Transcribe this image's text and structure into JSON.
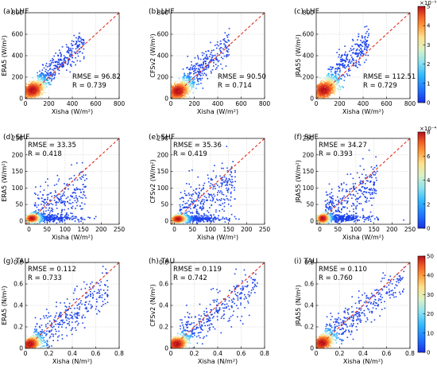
{
  "colors": {
    "identity_line": "#e0301e",
    "density_scale": [
      "#1b2fe3",
      "#1f6fff",
      "#2fb7ff",
      "#8fe3f0",
      "#d9f2c8",
      "#ffe08a",
      "#ff9a3c",
      "#f05a24",
      "#b80f1c"
    ]
  },
  "chart_data": [
    {
      "type": "scatter",
      "panel": "a",
      "title": "(a) LHF",
      "ylabel": "ERA5  (W/m²)",
      "xlabel": "Xisha  (W/m²)",
      "xlim": [
        0,
        800
      ],
      "ylim": [
        0,
        800
      ],
      "xticks": [
        0,
        200,
        400,
        600,
        800
      ],
      "yticks": [
        0,
        200,
        400,
        600,
        800
      ],
      "stats": {
        "rmse": "RMSE = 96.82",
        "r": "R = 0.739"
      },
      "stats_position": "bottom-right",
      "cluster": {
        "center": [
          60,
          80
        ],
        "spread": [
          50,
          45
        ],
        "corr": 0.55
      },
      "tail": {
        "x_range": [
          100,
          500
        ],
        "slope": 1.0,
        "offset": 30,
        "scatter": 60
      },
      "n_points": 1150
    },
    {
      "type": "scatter",
      "panel": "b",
      "title": "(b) LHF",
      "ylabel": "CFSv2  (W/m²)",
      "xlabel": "Xisha  (W/m²)",
      "xlim": [
        0,
        800
      ],
      "ylim": [
        0,
        800
      ],
      "xticks": [
        0,
        200,
        400,
        600,
        800
      ],
      "yticks": [
        0,
        200,
        400,
        600,
        800
      ],
      "stats": {
        "rmse": "RMSE = 90.50",
        "r": "R = 0.714"
      },
      "stats_position": "bottom-right",
      "cluster": {
        "center": [
          60,
          70
        ],
        "spread": [
          50,
          45
        ],
        "corr": 0.55
      },
      "tail": {
        "x_range": [
          100,
          500
        ],
        "slope": 0.95,
        "offset": 30,
        "scatter": 70
      },
      "n_points": 1150
    },
    {
      "type": "scatter",
      "panel": "c",
      "title": "(c) LHF",
      "ylabel": "JRA55  (W/m²)",
      "xlabel": "Xisha  (W/m²)",
      "xlim": [
        0,
        800
      ],
      "ylim": [
        0,
        800
      ],
      "xticks": [
        0,
        200,
        400,
        600,
        800
      ],
      "yticks": [
        0,
        200,
        400,
        600,
        800
      ],
      "stats": {
        "rmse": "RMSE = 112.51",
        "r": "R = 0.729"
      },
      "stats_position": "bottom-right",
      "cluster": {
        "center": [
          65,
          80
        ],
        "spread": [
          55,
          50
        ],
        "corr": 0.55
      },
      "tail": {
        "x_range": [
          100,
          450
        ],
        "slope": 1.1,
        "offset": 40,
        "scatter": 70
      },
      "n_points": 1150
    },
    {
      "type": "scatter",
      "panel": "d",
      "title": "(d) SHF",
      "ylabel": "ERA5  (W/m²)",
      "xlabel": "Xisha  (W/m²)",
      "xlim": [
        -10,
        250
      ],
      "ylim": [
        -10,
        250
      ],
      "xticks": [
        0,
        50,
        100,
        150,
        200,
        250
      ],
      "yticks": [
        0,
        50,
        100,
        150,
        200,
        250
      ],
      "stats": {
        "rmse": "RMSE = 33.35",
        "r": "R = 0.418"
      },
      "stats_position": "top-left",
      "cluster": {
        "center": [
          8,
          8
        ],
        "spread": [
          9,
          6
        ],
        "corr": 0.3
      },
      "tail": {
        "x_range": [
          15,
          160
        ],
        "slope": 0.6,
        "offset": 5,
        "scatter": 35
      },
      "n_points": 1150
    },
    {
      "type": "scatter",
      "panel": "e",
      "title": "(e) SHF",
      "ylabel": "CFSv2  (W/m²)",
      "xlabel": "Xisha  (W/m²)",
      "xlim": [
        -10,
        250
      ],
      "ylim": [
        -10,
        250
      ],
      "xticks": [
        0,
        50,
        100,
        150,
        200,
        250
      ],
      "yticks": [
        0,
        50,
        100,
        150,
        200,
        250
      ],
      "stats": {
        "rmse": "RMSE = 35.36",
        "r": "R = 0.419"
      },
      "stats_position": "top-left",
      "cluster": {
        "center": [
          10,
          6
        ],
        "spread": [
          10,
          6
        ],
        "corr": 0.3
      },
      "tail": {
        "x_range": [
          15,
          170
        ],
        "slope": 0.7,
        "offset": 5,
        "scatter": 40
      },
      "n_points": 1150
    },
    {
      "type": "scatter",
      "panel": "f",
      "title": "(f) SHF",
      "ylabel": "JRA55  (W/m²)",
      "xlabel": "Xisha  (W/m²)",
      "xlim": [
        -10,
        250
      ],
      "ylim": [
        -10,
        250
      ],
      "xticks": [
        0,
        50,
        100,
        150,
        200,
        250
      ],
      "yticks": [
        0,
        50,
        100,
        150,
        200,
        250
      ],
      "stats": {
        "rmse": "RMSE = 34.27",
        "r": "R = 0.393"
      },
      "stats_position": "top-left",
      "cluster": {
        "center": [
          8,
          8
        ],
        "spread": [
          8,
          7
        ],
        "corr": 0.3
      },
      "tail": {
        "x_range": [
          15,
          160
        ],
        "slope": 0.7,
        "offset": 8,
        "scatter": 38
      },
      "n_points": 1150
    },
    {
      "type": "scatter",
      "panel": "g",
      "title": "(g) TAU",
      "ylabel": "ERA5  (N/m²)",
      "xlabel": "Xisha  (N/m²)",
      "xlim": [
        0,
        0.8
      ],
      "ylim": [
        0,
        0.8
      ],
      "xticks": [
        0,
        0.2,
        0.4,
        0.6,
        0.8
      ],
      "yticks": [
        0,
        0.2,
        0.4,
        0.6,
        0.8
      ],
      "stats": {
        "rmse": "RMSE = 0.112",
        "r": "R = 0.733"
      },
      "stats_position": "top-left",
      "cluster": {
        "center": [
          0.04,
          0.04
        ],
        "spread": [
          0.04,
          0.035
        ],
        "corr": 0.6
      },
      "tail": {
        "x_range": [
          0.08,
          0.72
        ],
        "slope": 0.75,
        "offset": 0.02,
        "scatter": 0.09
      },
      "n_points": 1150
    },
    {
      "type": "scatter",
      "panel": "h",
      "title": "(h) TAU",
      "ylabel": "CFSv2  (N/m²)",
      "xlabel": "Xisha  (N/m²)",
      "xlim": [
        0,
        0.8
      ],
      "ylim": [
        0,
        0.8
      ],
      "xticks": [
        0,
        0.2,
        0.4,
        0.6,
        0.8
      ],
      "yticks": [
        0,
        0.2,
        0.4,
        0.6,
        0.8
      ],
      "stats": {
        "rmse": "RMSE = 0.119",
        "r": "R = 0.742"
      },
      "stats_position": "top-left",
      "cluster": {
        "center": [
          0.05,
          0.04
        ],
        "spread": [
          0.045,
          0.035
        ],
        "corr": 0.6
      },
      "tail": {
        "x_range": [
          0.08,
          0.75
        ],
        "slope": 0.8,
        "offset": 0.02,
        "scatter": 0.1
      },
      "n_points": 1150
    },
    {
      "type": "scatter",
      "panel": "i",
      "title": "(i) TAU",
      "ylabel": "JRA55  (N/m²)",
      "xlabel": "Xisha  (N/m²)",
      "xlim": [
        0,
        0.8
      ],
      "ylim": [
        0,
        0.8
      ],
      "xticks": [
        0,
        0.2,
        0.4,
        0.6,
        0.8
      ],
      "yticks": [
        0,
        0.2,
        0.4,
        0.6,
        0.8
      ],
      "stats": {
        "rmse": "RMSE = 0.110",
        "r": "R = 0.760"
      },
      "stats_position": "top-left",
      "cluster": {
        "center": [
          0.05,
          0.05
        ],
        "spread": [
          0.045,
          0.04
        ],
        "corr": 0.6
      },
      "tail": {
        "x_range": [
          0.08,
          0.75
        ],
        "slope": 0.85,
        "offset": 0.02,
        "scatter": 0.09
      },
      "n_points": 1150
    }
  ],
  "colorbars": [
    {
      "row": "LHF",
      "min": 0,
      "max": 5,
      "ticks": [
        "0",
        "1",
        "2",
        "3",
        "4",
        "5"
      ],
      "exponent_label": "×10⁻⁵"
    },
    {
      "row": "SHF",
      "min": 0,
      "max": 8,
      "ticks": [
        "0",
        "2",
        "4",
        "6",
        "8"
      ],
      "exponent_label": "×10⁻⁴"
    },
    {
      "row": "TAU",
      "min": 0,
      "max": 50,
      "ticks": [
        "0",
        "10",
        "20",
        "30",
        "40",
        "50"
      ],
      "exponent_label": ""
    }
  ]
}
